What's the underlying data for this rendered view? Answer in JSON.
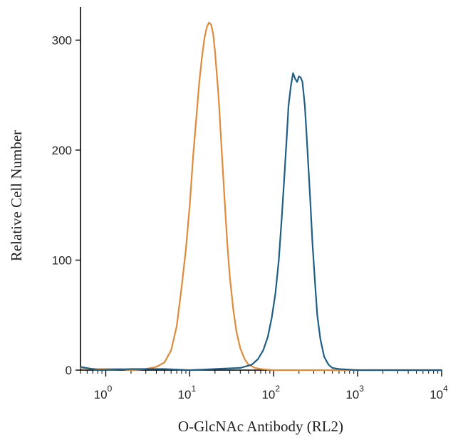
{
  "chart_data": {
    "type": "line",
    "xscale": "log",
    "xlim": [
      0.5,
      10000
    ],
    "ylim": [
      0,
      330
    ],
    "xlabel": "O-GlcNAc Antibody (RL2)",
    "ylabel": "Relative Cell Number",
    "grid": false,
    "legend": "none",
    "x_ticks": [
      {
        "base": "10",
        "exp": "0",
        "value": 1
      },
      {
        "base": "10",
        "exp": "1",
        "value": 10
      },
      {
        "base": "10",
        "exp": "2",
        "value": 100
      },
      {
        "base": "10",
        "exp": "3",
        "value": 1000
      },
      {
        "base": "10",
        "exp": "4",
        "value": 10000
      }
    ],
    "y_ticks": [
      {
        "label": "0",
        "value": 0
      },
      {
        "label": "100",
        "value": 100
      },
      {
        "label": "200",
        "value": 200
      },
      {
        "label": "300",
        "value": 300
      }
    ],
    "series": [
      {
        "color": "#e08a3c",
        "points": [
          [
            0.5,
            2
          ],
          [
            0.8,
            1
          ],
          [
            1.0,
            1
          ],
          [
            1.5,
            1
          ],
          [
            2.0,
            0
          ],
          [
            3.0,
            1
          ],
          [
            4.0,
            3
          ],
          [
            5.0,
            7
          ],
          [
            6.0,
            18
          ],
          [
            7.0,
            40
          ],
          [
            8.0,
            75
          ],
          [
            9.0,
            110
          ],
          [
            10.0,
            150
          ],
          [
            11.0,
            195
          ],
          [
            12.0,
            230
          ],
          [
            13.0,
            262
          ],
          [
            14.0,
            285
          ],
          [
            15.0,
            302
          ],
          [
            16.0,
            312
          ],
          [
            17.0,
            316
          ],
          [
            18.0,
            314
          ],
          [
            19.0,
            306
          ],
          [
            20.0,
            290
          ],
          [
            22.0,
            250
          ],
          [
            24.0,
            200
          ],
          [
            26.0,
            155
          ],
          [
            28.0,
            115
          ],
          [
            30.0,
            85
          ],
          [
            33.0,
            55
          ],
          [
            36.0,
            35
          ],
          [
            40.0,
            20
          ],
          [
            45.0,
            10
          ],
          [
            50.0,
            5
          ],
          [
            60.0,
            2
          ],
          [
            70.0,
            1
          ],
          [
            100.0,
            0
          ],
          [
            10000,
            0
          ]
        ]
      },
      {
        "color": "#1f5f86",
        "points": [
          [
            0.5,
            3
          ],
          [
            0.8,
            0
          ],
          [
            2.0,
            1
          ],
          [
            5.0,
            1
          ],
          [
            10.0,
            0
          ],
          [
            20.0,
            1
          ],
          [
            40.0,
            2
          ],
          [
            55.0,
            5
          ],
          [
            65.0,
            10
          ],
          [
            75.0,
            18
          ],
          [
            85.0,
            30
          ],
          [
            95.0,
            48
          ],
          [
            105.0,
            70
          ],
          [
            115.0,
            100
          ],
          [
            125.0,
            140
          ],
          [
            135.0,
            180
          ],
          [
            145.0,
            220
          ],
          [
            150.0,
            240
          ],
          [
            160.0,
            258
          ],
          [
            170.0,
            270
          ],
          [
            180.0,
            265
          ],
          [
            190.0,
            262
          ],
          [
            200.0,
            267
          ],
          [
            210.0,
            266
          ],
          [
            220.0,
            262
          ],
          [
            235.0,
            240
          ],
          [
            250.0,
            205
          ],
          [
            270.0,
            160
          ],
          [
            290.0,
            115
          ],
          [
            310.0,
            80
          ],
          [
            330.0,
            50
          ],
          [
            360.0,
            28
          ],
          [
            400.0,
            12
          ],
          [
            450.0,
            5
          ],
          [
            500.0,
            2
          ],
          [
            600.0,
            1
          ],
          [
            1000,
            0
          ],
          [
            10000,
            0
          ]
        ]
      }
    ]
  }
}
